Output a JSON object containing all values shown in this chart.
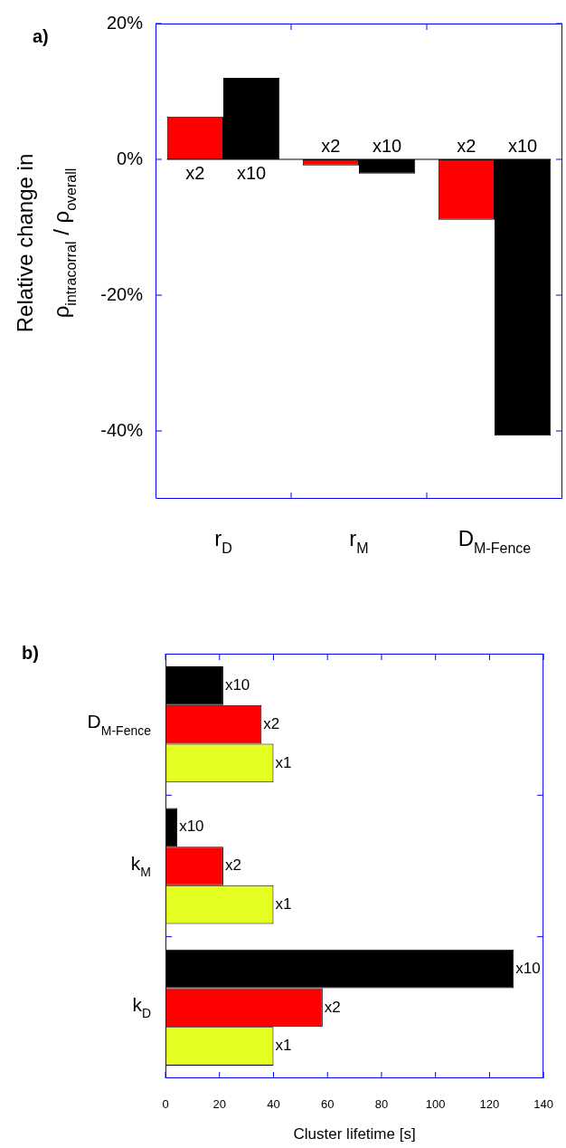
{
  "chart_data": [
    {
      "type": "bar",
      "title": "a)",
      "ylabel": "Relative change in\nρ$_{intracorral}$ / ρ$_{overall}$",
      "categories": [
        "r$_{D}$",
        "r$_{M}$",
        "D$_{M-Fence}$"
      ],
      "series": [
        {
          "name": "x2",
          "color": "#ff0000",
          "values": [
            6.3,
            -0.9,
            -8.9
          ]
        },
        {
          "name": "x10",
          "color": "#000000",
          "values": [
            12,
            -2.1,
            -40.7
          ]
        }
      ],
      "ylim": [
        -50,
        20
      ],
      "yticks": [
        {
          "value": 20,
          "label": "20%"
        },
        {
          "value": 0,
          "label": "0%"
        },
        {
          "value": -20,
          "label": "-20%"
        },
        {
          "value": -40,
          "label": "-40%"
        }
      ],
      "ref_lines": [
        {
          "axis": "y",
          "value": 0,
          "color": "#000000"
        }
      ],
      "legend": false,
      "grid": false
    },
    {
      "type": "bar",
      "orientation": "horizontal",
      "title": "b)",
      "xlabel": "Cluster lifetime [s]",
      "categories": [
        "D$_{M-Fence}$",
        "k$_{M}$",
        "k$_{D}$"
      ],
      "series": [
        {
          "name": "x10",
          "color": "#000000",
          "values": [
            21.4,
            4.4,
            129
          ]
        },
        {
          "name": "x2",
          "color": "#ff0000",
          "values": [
            35.6,
            21.4,
            58.2
          ]
        },
        {
          "name": "x1",
          "color": "#e6ff22",
          "values": [
            40,
            40,
            40
          ]
        }
      ],
      "xlim": [
        0,
        140
      ],
      "xticks": [
        0,
        20,
        40,
        60,
        80,
        100,
        120,
        140
      ],
      "legend": false,
      "grid": false
    }
  ]
}
